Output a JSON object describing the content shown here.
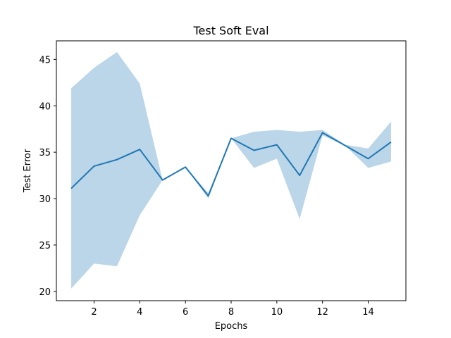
{
  "chart_data": {
    "type": "line",
    "title": "Test Soft Eval",
    "xlabel": "Epochs",
    "ylabel": "Test Error",
    "xlim": [
      0.35,
      15.65
    ],
    "ylim": [
      19.0,
      47.0
    ],
    "xticks": [
      2,
      4,
      6,
      8,
      10,
      12,
      14
    ],
    "yticks": [
      20,
      25,
      30,
      35,
      40,
      45
    ],
    "grid": false,
    "series": [
      {
        "x": [
          1,
          2,
          3,
          4,
          5,
          6,
          7,
          8,
          9,
          10,
          11,
          12,
          13,
          14,
          15
        ],
        "values": [
          31.1,
          33.5,
          34.2,
          35.3,
          32.0,
          33.4,
          30.3,
          36.5,
          35.2,
          35.8,
          32.5,
          37.1,
          35.7,
          34.3,
          36.1
        ],
        "lower": [
          20.3,
          23.0,
          22.7,
          28.2,
          32.0,
          33.4,
          30.0,
          36.5,
          33.3,
          34.3,
          27.8,
          36.8,
          35.7,
          33.3,
          34.0
        ],
        "upper": [
          41.9,
          44.1,
          45.8,
          42.4,
          32.0,
          33.4,
          30.6,
          36.5,
          37.2,
          37.4,
          37.2,
          37.4,
          35.8,
          35.4,
          38.3
        ],
        "color": "#1f77b4",
        "band_color": "#1f77b4",
        "band_alpha": 0.3
      }
    ]
  }
}
